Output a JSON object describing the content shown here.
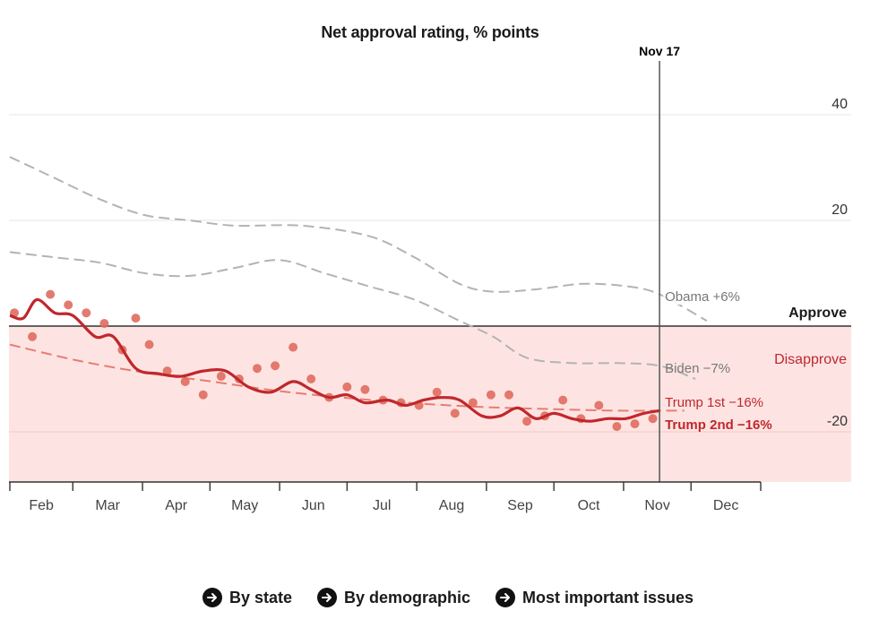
{
  "chart_data": {
    "type": "line",
    "title": "Net approval rating, % points",
    "xlabel": "",
    "ylabel": "",
    "months": [
      "Feb",
      "Mar",
      "Apr",
      "May",
      "Jun",
      "Jul",
      "Aug",
      "Sep",
      "Oct",
      "Nov",
      "Dec"
    ],
    "month_start_days": [
      0,
      28,
      59,
      89,
      120,
      150,
      181,
      212,
      242,
      273,
      303,
      334
    ],
    "x_domain_days": [
      0,
      334
    ],
    "ylim": [
      -30,
      48
    ],
    "yticks": [
      -20,
      20,
      40
    ],
    "ytick_labels": [
      "-20",
      "20",
      "40"
    ],
    "marker": {
      "label": "Nov 17",
      "day": 289
    },
    "zones": {
      "approve_label": "Approve",
      "disapprove_label": "Disapprove"
    },
    "colors": {
      "trump": "#c0272d",
      "trump_light": "#e06b5f",
      "comparison": "#b3b3b3",
      "disapprove_fill": "#fde4e2",
      "grid": "#e6e6e6",
      "axis": "#333333"
    },
    "series": [
      {
        "name": "Obama",
        "label": "Obama +6%",
        "style": "dashed-grey",
        "x": [
          0,
          20,
          40,
          60,
          80,
          100,
          130,
          160,
          180,
          200,
          215,
          235,
          255,
          275,
          289,
          310
        ],
        "y": [
          32,
          28,
          24,
          21,
          20,
          19,
          19,
          17,
          13,
          8,
          6.5,
          7,
          8,
          7.5,
          6,
          1
        ]
      },
      {
        "name": "Biden",
        "label": "Biden −7%",
        "style": "dashed-grey",
        "x": [
          0,
          20,
          40,
          60,
          80,
          100,
          120,
          140,
          160,
          180,
          200,
          215,
          230,
          250,
          270,
          289,
          305
        ],
        "y": [
          14,
          13,
          12,
          10,
          9.5,
          11,
          12.5,
          10,
          7.5,
          5,
          1,
          -2,
          -6,
          -7,
          -7,
          -7.5,
          -10
        ]
      },
      {
        "name": "Trump 1st",
        "label": "Trump 1st −16%",
        "style": "dashed-red",
        "x": [
          0,
          30,
          60,
          90,
          120,
          150,
          180,
          210,
          240,
          270,
          289,
          300
        ],
        "y": [
          -3.5,
          -6.5,
          -8.8,
          -10.5,
          -12.3,
          -13.6,
          -14.6,
          -15.3,
          -15.7,
          -16,
          -16,
          -16
        ]
      },
      {
        "name": "Trump 2nd",
        "label": "Trump 2nd −16%",
        "style": "solid-red",
        "x": [
          0,
          6,
          12,
          20,
          28,
          38,
          46,
          56,
          66,
          76,
          86,
          96,
          106,
          116,
          126,
          134,
          142,
          150,
          158,
          168,
          176,
          184,
          192,
          200,
          210,
          218,
          226,
          234,
          242,
          250,
          258,
          266,
          274,
          282,
          289
        ],
        "y": [
          2,
          1.5,
          5,
          2.5,
          2,
          -2,
          -2,
          -8,
          -9,
          -9.5,
          -8.5,
          -8.5,
          -11.5,
          -12.5,
          -10.5,
          -12,
          -13.5,
          -13,
          -14.5,
          -14,
          -15,
          -14,
          -13.5,
          -14,
          -17,
          -17,
          -15.5,
          -17.5,
          -16.5,
          -17.5,
          -18,
          -17.5,
          -17.5,
          -16.5,
          -16
        ]
      },
      {
        "name": "Trump 2nd polls",
        "style": "dots",
        "x": [
          2,
          10,
          18,
          26,
          34,
          42,
          50,
          56,
          62,
          70,
          78,
          86,
          94,
          102,
          110,
          118,
          126,
          134,
          142,
          150,
          158,
          166,
          174,
          182,
          190,
          198,
          206,
          214,
          222,
          230,
          238,
          246,
          254,
          262,
          270,
          278,
          286
        ],
        "y": [
          2.5,
          -2,
          6,
          4,
          2.5,
          0.5,
          -4.5,
          1.5,
          -3.5,
          -8.5,
          -10.5,
          -13,
          -9.5,
          -10,
          -8,
          -7.5,
          -4,
          -10,
          -13.5,
          -11.5,
          -12,
          -14,
          -14.5,
          -15,
          -12.5,
          -16.5,
          -14.5,
          -13,
          -13,
          -18,
          -17,
          -14,
          -17.5,
          -15,
          -19,
          -18.5,
          -17.5
        ]
      }
    ]
  },
  "links": [
    {
      "label": "By state"
    },
    {
      "label": "By demographic"
    },
    {
      "label": "Most important issues"
    }
  ]
}
